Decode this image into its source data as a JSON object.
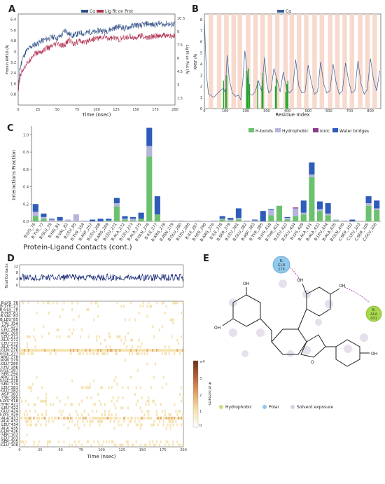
{
  "panels": [
    "A",
    "B",
    "C",
    "D",
    "E"
  ],
  "chart_data": [
    {
      "id": "A",
      "type": "line",
      "xlabel": "Time (nsec)",
      "ylabel": "Protein RMSD (Å)",
      "y2label": "Lig fit on Prot (Å)",
      "legend": [
        "Cα",
        "Lig fit on Prot"
      ],
      "x_ticks": [
        "0",
        "25",
        "50",
        "75",
        "100",
        "125",
        "150",
        "175",
        "200"
      ],
      "y_ticks": [
        "0.8",
        "1.6",
        "2.4",
        "3.2",
        "4",
        "4.8",
        "5.6",
        "6.4"
      ],
      "y2_ticks": [
        "10.5",
        "9",
        "7.5",
        "6",
        "4.5",
        "3",
        "1.5"
      ],
      "xlim": [
        0,
        200
      ],
      "ylim": [
        0,
        6.8
      ],
      "series": [
        {
          "name": "Cα",
          "color": "#2f4f86",
          "x": [
            0,
            2,
            5,
            10,
            15,
            20,
            25,
            30,
            35,
            40,
            45,
            50,
            55,
            60,
            65,
            70,
            75,
            80,
            85,
            90,
            95,
            100,
            105,
            110,
            115,
            120,
            125,
            130,
            135,
            140,
            145,
            150,
            155,
            160,
            165,
            170,
            175,
            180,
            185,
            190,
            195,
            200
          ],
          "y": [
            1.2,
            2.6,
            3.4,
            4.0,
            4.3,
            4.5,
            4.6,
            4.8,
            4.9,
            5.0,
            5.1,
            5.0,
            5.2,
            5.6,
            5.3,
            5.2,
            5.3,
            5.4,
            5.3,
            5.5,
            5.4,
            5.5,
            5.6,
            5.5,
            5.6,
            5.7,
            5.8,
            5.9,
            5.7,
            5.8,
            5.9,
            6.0,
            5.9,
            6.0,
            6.1,
            6.0,
            6.0,
            6.1,
            6.0,
            6.1,
            6.0,
            6.1
          ]
        },
        {
          "name": "Lig fit on Prot",
          "color": "#b03050",
          "x": [
            0,
            2,
            5,
            10,
            15,
            20,
            25,
            30,
            35,
            40,
            45,
            50,
            55,
            60,
            65,
            70,
            75,
            80,
            85,
            90,
            95,
            100,
            105,
            110,
            115,
            120,
            125,
            130,
            135,
            140,
            145,
            150,
            155,
            160,
            165,
            170,
            175,
            180,
            185,
            190,
            195,
            200
          ],
          "y": [
            1.0,
            2.0,
            2.6,
            3.0,
            3.4,
            3.8,
            3.9,
            4.0,
            4.2,
            4.3,
            4.4,
            4.6,
            4.4,
            4.5,
            4.9,
            4.6,
            4.7,
            4.8,
            4.6,
            4.9,
            4.9,
            5.0,
            5.0,
            5.1,
            5.0,
            5.0,
            5.0,
            4.9,
            5.0,
            5.1,
            5.1,
            5.0,
            5.2,
            5.1,
            5.0,
            5.1,
            5.2,
            5.1,
            5.2,
            5.2,
            5.1,
            5.2
          ]
        }
      ]
    },
    {
      "id": "B",
      "type": "line",
      "xlabel": "Residue Index",
      "ylabel": "RMSF (Å)",
      "legend": [
        "Cα"
      ],
      "x_ticks": [
        "0",
        "100",
        "200",
        "300",
        "400",
        "500",
        "600",
        "700",
        "800"
      ],
      "y_ticks": [
        "0",
        "1",
        "2",
        "3",
        "4",
        "5",
        "6",
        "7",
        "8"
      ],
      "xlim": [
        0,
        850
      ],
      "ylim": [
        0,
        8.5
      ],
      "series": [
        {
          "name": "Cα",
          "color": "#3a5e96",
          "x": [
            0,
            10,
            20,
            30,
            45,
            60,
            75,
            90,
            100,
            110,
            120,
            135,
            150,
            165,
            175,
            185,
            195,
            205,
            215,
            230,
            245,
            260,
            275,
            290,
            300,
            310,
            320,
            335,
            350,
            365,
            380,
            395,
            410,
            425,
            440,
            455,
            470,
            485,
            500,
            515,
            530,
            545,
            560,
            575,
            590,
            605,
            620,
            635,
            650,
            665,
            680,
            695,
            710,
            725,
            740,
            755,
            770,
            785,
            800,
            815,
            830,
            845
          ],
          "y": [
            8.0,
            3.0,
            1.3,
            1.2,
            1.0,
            1.3,
            1.6,
            1.8,
            1.5,
            4.8,
            2.6,
            1.4,
            1.1,
            1.2,
            0.8,
            2.4,
            5.2,
            3.5,
            1.3,
            1.2,
            1.5,
            2.5,
            1.6,
            4.6,
            2.4,
            1.4,
            1.6,
            3.6,
            2.6,
            1.5,
            3.3,
            1.8,
            1.4,
            1.7,
            4.4,
            2.0,
            1.4,
            1.5,
            3.9,
            2.4,
            1.3,
            1.5,
            4.2,
            2.2,
            1.4,
            1.6,
            4.0,
            2.3,
            1.3,
            1.6,
            4.1,
            2.5,
            1.4,
            1.6,
            4.3,
            2.2,
            1.3,
            1.7,
            4.5,
            2.6,
            1.6,
            3.4
          ]
        }
      ]
    },
    {
      "id": "C",
      "type": "bar",
      "stacked": true,
      "ylabel": "Interactions Fraction",
      "legend": [
        "H-bonds",
        "Hydrophobic",
        "Ionic",
        "Water bridges"
      ],
      "colors": [
        "#6cc16f",
        "#b3b5db",
        "#8a3a8e",
        "#2e5cb8"
      ],
      "y_ticks": [
        "0.0",
        "0.2",
        "0.4",
        "0.6",
        "0.8",
        "1.0"
      ],
      "ylim": [
        0,
        1.1
      ],
      "categories": [
        "B:LYS_76",
        "B:TYR_77",
        "B:GLU_78",
        "B:HIS_81",
        "B:VAL_82",
        "B:LEU_85",
        "B:TYR_154",
        "B:ASP_257",
        "B:LEU_268",
        "B:ARG_269",
        "B:LEU_271",
        "B:ALA_272",
        "B:LEU_273",
        "B:ALA_275",
        "B:GLN_276",
        "B:ILE_277",
        "B:ARG_278",
        "B:ASN_279",
        "B:GLU_280",
        "B:LEU_286",
        "B:ILE_287",
        "B:SER_290",
        "B:ARG_376",
        "B:ILE_378",
        "B:SER_379",
        "B:LEU_381",
        "B:GLU_382",
        "B:ASP_383",
        "B:TYR_385",
        "B:LYS_418",
        "B:THR_421",
        "B:LEU_422",
        "B:GLU_424",
        "B:LYS_429",
        "B:ALA_431",
        "B:ALA_432",
        "B:LEU_434",
        "B:ALA_435",
        "B:GLN_436",
        "C:SER_102",
        "C:LEU_103",
        "C:SER_105",
        "C:GLU_106"
      ],
      "series": [
        {
          "name": "H-bonds",
          "values": [
            0.06,
            0.03,
            0,
            0,
            0,
            0,
            0,
            0,
            0,
            0.01,
            0.17,
            0.02,
            0.01,
            0.03,
            0.75,
            0.08,
            0,
            0,
            0,
            0,
            0,
            0,
            0,
            0.02,
            0.01,
            0.02,
            0,
            0,
            0,
            0.07,
            0.18,
            0.02,
            0.06,
            0.08,
            0.51,
            0.12,
            0.07,
            0.01,
            0,
            0,
            0,
            0.18,
            0.13
          ]
        },
        {
          "name": "Hydrophobic",
          "values": [
            0.05,
            0.02,
            0.02,
            0.01,
            0.02,
            0.08,
            0.01,
            0,
            0,
            0,
            0.04,
            0.01,
            0.02,
            0,
            0.12,
            0,
            0,
            0.01,
            0.01,
            0,
            0.01,
            0,
            0.01,
            0.01,
            0.01,
            0.02,
            0.01,
            0.01,
            0,
            0.06,
            0,
            0.02,
            0.09,
            0.02,
            0.03,
            0.02,
            0.02,
            0.01,
            0.01,
            0,
            0,
            0.03,
            0.02
          ]
        },
        {
          "name": "Ionic",
          "values": [
            0,
            0,
            0,
            0,
            0,
            0,
            0,
            0,
            0,
            0,
            0,
            0,
            0,
            0,
            0,
            0,
            0,
            0,
            0,
            0,
            0,
            0,
            0,
            0,
            0,
            0,
            0,
            0,
            0,
            0,
            0,
            0,
            0.01,
            0,
            0,
            0,
            0,
            0,
            0,
            0,
            0,
            0,
            0
          ]
        },
        {
          "name": "Water bridges",
          "values": [
            0.09,
            0.04,
            0.01,
            0.04,
            0,
            0,
            0,
            0.02,
            0.03,
            0.02,
            0.06,
            0.03,
            0.02,
            0.07,
            0.21,
            0.21,
            0,
            0,
            0,
            0,
            0,
            0,
            0,
            0.03,
            0.02,
            0.11,
            0,
            0.01,
            0.12,
            0.01,
            0,
            0.01,
            0,
            0.14,
            0.14,
            0.09,
            0.12,
            0,
            0,
            0.02,
            0,
            0.08,
            0.09
          ]
        }
      ]
    },
    {
      "id": "D",
      "type": "heatmap",
      "title": "Protein-Ligand Contacts (cont.)",
      "xlabel": "Time (nsec)",
      "ylabel_top": "Total Contacts",
      "cbar_label": "# of contacts",
      "cbar_ticks": [
        "≥4",
        "3",
        "2",
        "1",
        "0"
      ],
      "x_ticks": [
        "0",
        "25",
        "50",
        "75",
        "100",
        "125",
        "150",
        "175",
        "200"
      ],
      "top_y_ticks": [
        "12",
        "8",
        "4",
        "0"
      ],
      "rows": [
        "B:LYS_76",
        "B:TYR_77",
        "B:GLU_78",
        "B:HIS_81",
        "B:VAL_82",
        "B:LEU_85",
        "B:TYR_154",
        "B:ASP_257",
        "B:LEU_268",
        "B:ARG_269",
        "B:LEU_271",
        "B:ALA_272",
        "B:LEU_273",
        "B:ALA_275",
        "B:GLN_276",
        "B:ILE_277",
        "B:ARG_278",
        "B:ASN_279",
        "B:GLU_280",
        "B:LEU_286",
        "B:ILE_287",
        "B:SER_290",
        "B:ARG_376",
        "B:ILE_378",
        "B:SER_379",
        "B:LEU_381",
        "B:GLU_382",
        "B:ASP_383",
        "B:TYR_385",
        "B:LYS_418",
        "B:THR_421",
        "B:LEU_422",
        "B:GLU_424",
        "B:LYS_429",
        "B:ALA_431",
        "B:ALA_432",
        "B:LEU_434",
        "B:ALA_435",
        "B:GLN_436",
        "C:SER_102",
        "C:LEU_103",
        "C:SER_105",
        "C:GLU_106"
      ],
      "row_occupancy": [
        0.2,
        0.1,
        0.02,
        0.05,
        0.02,
        0.08,
        0.01,
        0.02,
        0.03,
        0.03,
        0.27,
        0.05,
        0.05,
        0.1,
        1.0,
        0.29,
        0,
        0.01,
        0.01,
        0,
        0.01,
        0,
        0.01,
        0.06,
        0.04,
        0.15,
        0.01,
        0.02,
        0.12,
        0.14,
        0.18,
        0.05,
        0.16,
        0.24,
        0.68,
        0.23,
        0.21,
        0.02,
        0.01,
        0.02,
        0,
        0.29,
        0.24
      ]
    }
  ],
  "molecule": {
    "residues": [
      {
        "chain": "B:",
        "name": "GLN",
        "num": "276",
        "color": "#8ec9ee"
      },
      {
        "chain": "B:",
        "name": "ALA",
        "num": "431",
        "color": "#a8d94a"
      }
    ],
    "atom_labels": [
      "OH",
      "OH",
      "OH",
      "OH",
      "OH",
      "O"
    ],
    "legend": [
      "Hydrophobic",
      "Polar",
      "Solvent exposure"
    ],
    "legend_colors": [
      "#c8e07a",
      "#8ec9ee",
      "#d9cfe3"
    ]
  }
}
